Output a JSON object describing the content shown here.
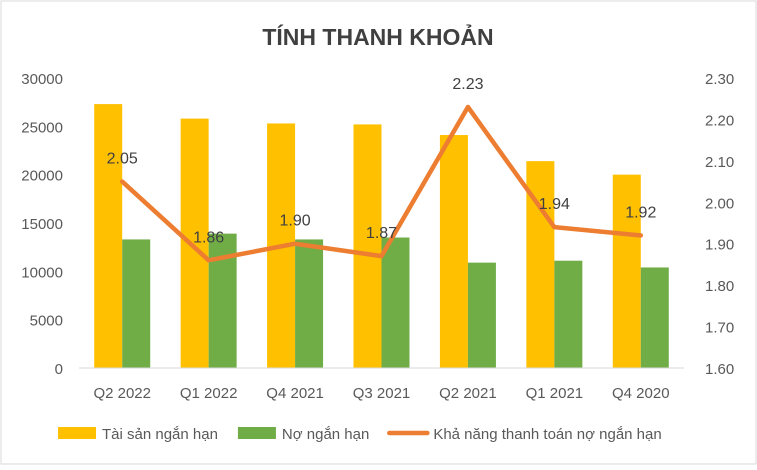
{
  "chart_data": {
    "type": "bar",
    "title": "TÍNH THANH KHOẢN",
    "categories": [
      "Q2 2022",
      "Q1 2022",
      "Q4 2021",
      "Q3 2021",
      "Q2 2021",
      "Q1 2021",
      "Q4 2020"
    ],
    "series": [
      {
        "name": "Tài sản ngắn hạn",
        "type": "bar",
        "axis": "left",
        "color": "#FFC000",
        "values": [
          27300,
          25800,
          25300,
          25200,
          24100,
          21400,
          20000
        ]
      },
      {
        "name": "Nợ ngắn hạn",
        "type": "bar",
        "axis": "left",
        "color": "#70AD47",
        "values": [
          13300,
          13900,
          13300,
          13500,
          10900,
          11100,
          10400
        ]
      },
      {
        "name": "Khả năng thanh toán nợ ngắn hạn",
        "type": "line",
        "axis": "right",
        "color": "#ED7D31",
        "values": [
          2.05,
          1.86,
          1.9,
          1.87,
          2.23,
          1.94,
          1.92
        ],
        "labels": [
          "2.05",
          "1.86",
          "1.90",
          "1.87",
          "2.23",
          "1.94",
          "1.92"
        ]
      }
    ],
    "left_axis": {
      "min": 0,
      "max": 30000,
      "ticks": [
        "0",
        "5000",
        "10000",
        "15000",
        "20000",
        "25000",
        "30000"
      ]
    },
    "right_axis": {
      "min": 1.6,
      "max": 2.3,
      "ticks": [
        "1.60",
        "1.70",
        "1.80",
        "1.90",
        "2.00",
        "2.10",
        "2.20",
        "2.30"
      ]
    },
    "grid": false,
    "legend": "bottom"
  }
}
